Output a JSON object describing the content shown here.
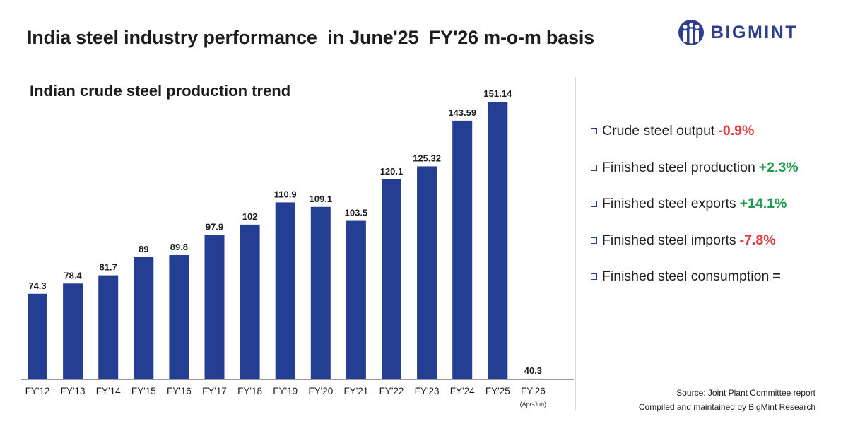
{
  "header": {
    "title": "India steel industry performance  in June'25  FY'26 m-o-m basis",
    "logo_text": "BIGMINT",
    "logo_alt": "BigMint logo"
  },
  "colors": {
    "bar": "#243e94",
    "positive": "#1f9a4b",
    "negative": "#e5383f",
    "neutral": "#1f1f1f",
    "brand": "#2f3d8f"
  },
  "chart_data": {
    "type": "bar",
    "title": "Indian crude steel production trend",
    "categories": [
      "FY'12",
      "FY'13",
      "FY'14",
      "FY'15",
      "FY'16",
      "FY'17",
      "FY'18",
      "FY'19",
      "FY'20",
      "FY'21",
      "FY'22",
      "FY'23",
      "FY'24",
      "FY'25",
      "FY'26"
    ],
    "values": [
      74.3,
      78.4,
      81.7,
      89,
      89.8,
      97.9,
      102,
      110.9,
      109.1,
      103.5,
      120.1,
      125.32,
      143.59,
      151.14,
      40.3
    ],
    "value_labels": [
      "74.3",
      "78.4",
      "81.7",
      "89",
      "89.8",
      "97.9",
      "102",
      "110.9",
      "109.1",
      "103.5",
      "120.1",
      "125.32",
      "143.59",
      "151.14",
      "40.3"
    ],
    "category_notes": [
      "",
      "",
      "",
      "",
      "",
      "",
      "",
      "",
      "",
      "",
      "",
      "",
      "",
      "",
      "(Apr-Jun)"
    ],
    "value_axis_range": [
      40,
      156
    ],
    "xlabel": "",
    "ylabel": "",
    "grid": false,
    "legend": "none"
  },
  "stats": [
    {
      "label": "Crude steel output",
      "value": "-0.9%",
      "trend": "negative"
    },
    {
      "label": "Finished steel production",
      "value": "+2.3%",
      "trend": "positive"
    },
    {
      "label": "Finished steel exports",
      "value": "+14.1%",
      "trend": "positive"
    },
    {
      "label": "Finished steel imports",
      "value": "-7.8%",
      "trend": "negative"
    },
    {
      "label": "Finished steel consumption",
      "value": "=",
      "trend": "neutral"
    }
  ],
  "footer": {
    "source": "Source: Joint Plant Committee report",
    "compiled": "Compiled and maintained by BigMint Research"
  }
}
